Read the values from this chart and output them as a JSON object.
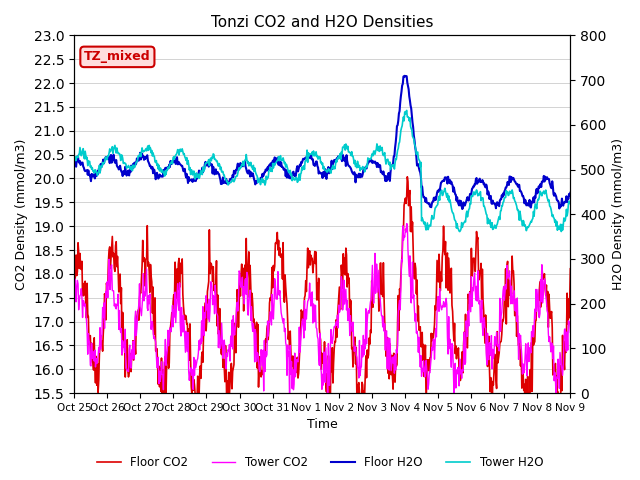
{
  "title": "Tonzi CO2 and H2O Densities",
  "xlabel": "Time",
  "ylabel_left": "CO2 Density (mmol/m3)",
  "ylabel_right": "H2O Density (mmol/m3)",
  "ylim_left": [
    15.5,
    23.0
  ],
  "ylim_right": [
    0,
    800
  ],
  "annotation_text": "TZ_mixed",
  "annotation_color": "#cc0000",
  "annotation_bg": "#ffdddd",
  "annotation_border": "#cc0000",
  "xtick_labels": [
    "Oct 25",
    "Oct 26",
    "Oct 27",
    "Oct 28",
    "Oct 29",
    "Oct 30",
    "Oct 31",
    "Nov 1",
    "Nov 2",
    "Nov 3",
    "Nov 4",
    "Nov 5",
    "Nov 6",
    "Nov 7",
    "Nov 8",
    "Nov 9"
  ],
  "legend_entries": [
    "Floor CO2",
    "Tower CO2",
    "Floor H2O",
    "Tower H2O"
  ],
  "colors": {
    "floor_co2": "#dd0000",
    "tower_co2": "#ff00ff",
    "floor_h2o": "#0000cc",
    "tower_h2o": "#00cccc"
  },
  "line_widths": {
    "floor_co2": 1.2,
    "tower_co2": 1.0,
    "floor_h2o": 1.5,
    "tower_h2o": 1.2
  },
  "yticks_left": [
    15.5,
    16.0,
    16.5,
    17.0,
    17.5,
    18.0,
    18.5,
    19.0,
    19.5,
    20.0,
    20.5,
    21.0,
    21.5,
    22.0,
    22.5,
    23.0
  ],
  "yticks_right": [
    0,
    100,
    200,
    300,
    400,
    500,
    600,
    700,
    800
  ]
}
